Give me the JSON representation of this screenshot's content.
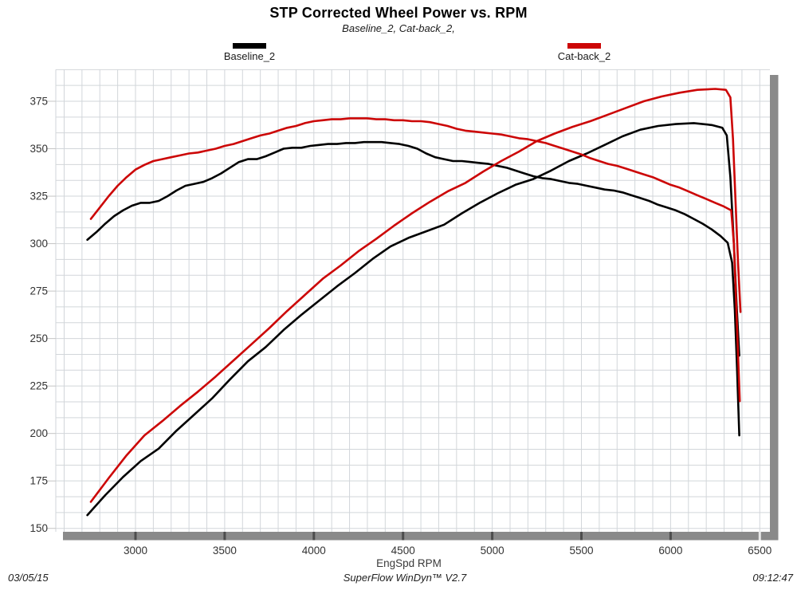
{
  "header": {
    "title": "STP Corrected Wheel Power vs. RPM",
    "subtitle": "Baseline_2, Cat-back_2,"
  },
  "legend": {
    "items": [
      {
        "label": "Baseline_2",
        "color": "#000000"
      },
      {
        "label": "Cat-back_2",
        "color": "#cc0606"
      }
    ]
  },
  "footer": {
    "date": "03/05/15",
    "app": "SuperFlow WinDyn™ V2.7",
    "time": "09:12:47"
  },
  "chart_data": {
    "type": "line",
    "title": "STP Corrected Wheel Power vs. RPM",
    "subtitle": "Baseline_2, Cat-back_2,",
    "xlabel": "EngSpd RPM",
    "ylabel": "",
    "x_ticks": [
      3000,
      3500,
      4000,
      4500,
      5000,
      5500,
      6000,
      6500
    ],
    "y_ticks": [
      150,
      175,
      200,
      225,
      250,
      275,
      300,
      325,
      350,
      375
    ],
    "xlim": [
      2550,
      6560
    ],
    "ylim": [
      147,
      391
    ],
    "x_minor_grid_rpm": 100,
    "grid": true,
    "legend_position": "top",
    "colors": {
      "baseline": "#000000",
      "catback": "#cc0606",
      "grid": "#d2d6da",
      "axis_band": "#8a8a8a",
      "tick_dark": "#4d4d4d",
      "tick_light": "#e8e8e8",
      "label": "#333333"
    },
    "series": [
      {
        "name": "Baseline_2 (torque)",
        "color": "#000000",
        "points": [
          [
            2730,
            302
          ],
          [
            2780,
            306
          ],
          [
            2830,
            310.5
          ],
          [
            2880,
            314.5
          ],
          [
            2930,
            317.5
          ],
          [
            2980,
            320
          ],
          [
            3030,
            321.5
          ],
          [
            3080,
            321.5
          ],
          [
            3130,
            322.5
          ],
          [
            3180,
            325
          ],
          [
            3230,
            328
          ],
          [
            3280,
            330.5
          ],
          [
            3330,
            331.5
          ],
          [
            3380,
            332.5
          ],
          [
            3430,
            334.5
          ],
          [
            3480,
            337
          ],
          [
            3530,
            340
          ],
          [
            3580,
            343
          ],
          [
            3630,
            344.5
          ],
          [
            3680,
            344.5
          ],
          [
            3730,
            346
          ],
          [
            3780,
            348
          ],
          [
            3830,
            350
          ],
          [
            3880,
            350.5
          ],
          [
            3930,
            350.5
          ],
          [
            3980,
            351.5
          ],
          [
            4030,
            352
          ],
          [
            4080,
            352.5
          ],
          [
            4130,
            352.5
          ],
          [
            4180,
            353
          ],
          [
            4230,
            353
          ],
          [
            4280,
            353.5
          ],
          [
            4330,
            353.5
          ],
          [
            4380,
            353.5
          ],
          [
            4430,
            353
          ],
          [
            4480,
            352.5
          ],
          [
            4530,
            351.5
          ],
          [
            4580,
            350
          ],
          [
            4630,
            347.5
          ],
          [
            4680,
            345.5
          ],
          [
            4730,
            344.5
          ],
          [
            4780,
            343.5
          ],
          [
            4830,
            343.5
          ],
          [
            4880,
            343
          ],
          [
            4930,
            342.5
          ],
          [
            4980,
            342
          ],
          [
            5030,
            341
          ],
          [
            5080,
            340
          ],
          [
            5130,
            338.5
          ],
          [
            5180,
            337
          ],
          [
            5230,
            335.5
          ],
          [
            5280,
            334.5
          ],
          [
            5330,
            334
          ],
          [
            5380,
            333
          ],
          [
            5430,
            332
          ],
          [
            5480,
            331.5
          ],
          [
            5530,
            330.5
          ],
          [
            5580,
            329.5
          ],
          [
            5630,
            328.5
          ],
          [
            5680,
            328
          ],
          [
            5730,
            327
          ],
          [
            5780,
            325.5
          ],
          [
            5830,
            324
          ],
          [
            5880,
            322.5
          ],
          [
            5930,
            320.5
          ],
          [
            5980,
            319
          ],
          [
            6030,
            317.5
          ],
          [
            6080,
            315.5
          ],
          [
            6130,
            313
          ],
          [
            6180,
            310.5
          ],
          [
            6230,
            307.5
          ],
          [
            6280,
            304
          ],
          [
            6320,
            300.5
          ],
          [
            6345,
            290
          ],
          [
            6360,
            265
          ],
          [
            6372,
            235
          ],
          [
            6385,
            199
          ]
        ]
      },
      {
        "name": "Baseline_2 (power)",
        "color": "#000000",
        "points": [
          [
            2730,
            157
          ],
          [
            2830,
            167.5
          ],
          [
            2930,
            177
          ],
          [
            3030,
            185.5
          ],
          [
            3130,
            192
          ],
          [
            3230,
            201.5
          ],
          [
            3330,
            210
          ],
          [
            3430,
            218.5
          ],
          [
            3530,
            228.5
          ],
          [
            3630,
            238
          ],
          [
            3730,
            245.5
          ],
          [
            3830,
            254.5
          ],
          [
            3930,
            262.5
          ],
          [
            4030,
            270
          ],
          [
            4130,
            277.5
          ],
          [
            4230,
            284.5
          ],
          [
            4330,
            292
          ],
          [
            4430,
            298.5
          ],
          [
            4530,
            303
          ],
          [
            4630,
            306.5
          ],
          [
            4730,
            310
          ],
          [
            4830,
            316
          ],
          [
            4930,
            321.5
          ],
          [
            5030,
            326.5
          ],
          [
            5130,
            331
          ],
          [
            5230,
            334
          ],
          [
            5330,
            338.5
          ],
          [
            5430,
            343.5
          ],
          [
            5530,
            347.5
          ],
          [
            5630,
            352
          ],
          [
            5730,
            356.5
          ],
          [
            5830,
            360
          ],
          [
            5930,
            362
          ],
          [
            6030,
            363
          ],
          [
            6130,
            363.5
          ],
          [
            6230,
            362.5
          ],
          [
            6290,
            361
          ],
          [
            6315,
            357
          ],
          [
            6335,
            335
          ],
          [
            6355,
            300
          ],
          [
            6370,
            268
          ],
          [
            6385,
            241
          ]
        ]
      },
      {
        "name": "Cat-back_2 (torque)",
        "color": "#cc0606",
        "points": [
          [
            2750,
            313
          ],
          [
            2800,
            319
          ],
          [
            2850,
            325
          ],
          [
            2900,
            330.5
          ],
          [
            2950,
            335
          ],
          [
            3000,
            339
          ],
          [
            3050,
            341.5
          ],
          [
            3100,
            343.5
          ],
          [
            3150,
            344.5
          ],
          [
            3200,
            345.5
          ],
          [
            3250,
            346.5
          ],
          [
            3300,
            347.5
          ],
          [
            3350,
            348
          ],
          [
            3400,
            349
          ],
          [
            3450,
            350
          ],
          [
            3500,
            351.5
          ],
          [
            3550,
            352.5
          ],
          [
            3600,
            354
          ],
          [
            3650,
            355.5
          ],
          [
            3700,
            357
          ],
          [
            3750,
            358
          ],
          [
            3800,
            359.5
          ],
          [
            3850,
            361
          ],
          [
            3900,
            362
          ],
          [
            3950,
            363.5
          ],
          [
            4000,
            364.5
          ],
          [
            4050,
            365
          ],
          [
            4100,
            365.5
          ],
          [
            4150,
            365.5
          ],
          [
            4200,
            366
          ],
          [
            4250,
            366
          ],
          [
            4300,
            366
          ],
          [
            4350,
            365.5
          ],
          [
            4400,
            365.5
          ],
          [
            4450,
            365
          ],
          [
            4500,
            365
          ],
          [
            4550,
            364.5
          ],
          [
            4600,
            364.5
          ],
          [
            4650,
            364
          ],
          [
            4700,
            363
          ],
          [
            4750,
            362
          ],
          [
            4800,
            360.5
          ],
          [
            4850,
            359.5
          ],
          [
            4900,
            359
          ],
          [
            4950,
            358.5
          ],
          [
            5000,
            358
          ],
          [
            5050,
            357.5
          ],
          [
            5100,
            356.5
          ],
          [
            5150,
            355.5
          ],
          [
            5200,
            355
          ],
          [
            5250,
            354
          ],
          [
            5300,
            353
          ],
          [
            5350,
            351.5
          ],
          [
            5400,
            350
          ],
          [
            5450,
            348.5
          ],
          [
            5500,
            347
          ],
          [
            5550,
            345
          ],
          [
            5600,
            343.5
          ],
          [
            5650,
            342
          ],
          [
            5700,
            341
          ],
          [
            5750,
            339.5
          ],
          [
            5800,
            338
          ],
          [
            5850,
            336.5
          ],
          [
            5900,
            335
          ],
          [
            5950,
            333
          ],
          [
            6000,
            331
          ],
          [
            6050,
            329.5
          ],
          [
            6100,
            327.5
          ],
          [
            6150,
            325.5
          ],
          [
            6200,
            323.5
          ],
          [
            6250,
            321.5
          ],
          [
            6300,
            319.5
          ],
          [
            6340,
            317.5
          ],
          [
            6355,
            300
          ],
          [
            6365,
            275
          ],
          [
            6375,
            250
          ],
          [
            6388,
            217
          ]
        ]
      },
      {
        "name": "Cat-back_2 (power)",
        "color": "#cc0606",
        "points": [
          [
            2750,
            164
          ],
          [
            2850,
            176.5
          ],
          [
            2950,
            188.5
          ],
          [
            3050,
            199
          ],
          [
            3150,
            206.5
          ],
          [
            3250,
            214.5
          ],
          [
            3350,
            222
          ],
          [
            3450,
            230
          ],
          [
            3550,
            238.5
          ],
          [
            3650,
            247
          ],
          [
            3750,
            255.5
          ],
          [
            3850,
            264.5
          ],
          [
            3950,
            273
          ],
          [
            4050,
            281.5
          ],
          [
            4150,
            288.5
          ],
          [
            4250,
            296
          ],
          [
            4350,
            302.5
          ],
          [
            4450,
            309.5
          ],
          [
            4550,
            316
          ],
          [
            4650,
            322
          ],
          [
            4750,
            327.5
          ],
          [
            4850,
            332
          ],
          [
            4950,
            338
          ],
          [
            5050,
            343.5
          ],
          [
            5150,
            348.5
          ],
          [
            5250,
            354
          ],
          [
            5350,
            358
          ],
          [
            5450,
            361.5
          ],
          [
            5550,
            364.5
          ],
          [
            5650,
            368
          ],
          [
            5750,
            371.5
          ],
          [
            5850,
            375
          ],
          [
            5950,
            377.5
          ],
          [
            6050,
            379.5
          ],
          [
            6150,
            381
          ],
          [
            6250,
            381.5
          ],
          [
            6310,
            381
          ],
          [
            6335,
            377
          ],
          [
            6350,
            355
          ],
          [
            6365,
            320
          ],
          [
            6378,
            290
          ],
          [
            6392,
            264
          ]
        ]
      }
    ]
  }
}
